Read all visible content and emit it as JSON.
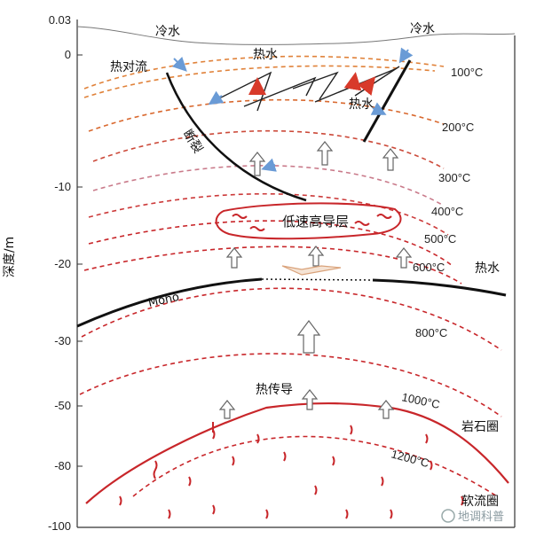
{
  "y_axis": {
    "label": "深度/m",
    "ticks": [
      "0.03",
      "0",
      "-10",
      "-20",
      "-30",
      "-50",
      "-80",
      "-100"
    ]
  },
  "labels": {
    "cold_water_left": "冷水",
    "cold_water_right": "冷水",
    "hot_water_top": "热水",
    "hot_water_right": "热水",
    "heat_convection": "热对流",
    "fault": "断裂",
    "low_velocity_layer": "低速高导层",
    "moho": "Moho",
    "heat_conduction": "热传导",
    "lithosphere": "岩石圈",
    "asthenosphere": "软流圈",
    "hot_water_side": "热水"
  },
  "isotherms": [
    "100°C",
    "200°C",
    "300°C",
    "400°C",
    "500°C",
    "600°C",
    "800°C",
    "1000°C",
    "1200°C"
  ],
  "watermark": "地调科普",
  "colors": {
    "iso_orange": "#e0823a",
    "iso_red": "#c8262a",
    "iso_pink": "#c97a8a",
    "arrow_blue": "#6a9bd6",
    "arrow_red": "#d83a2a"
  }
}
